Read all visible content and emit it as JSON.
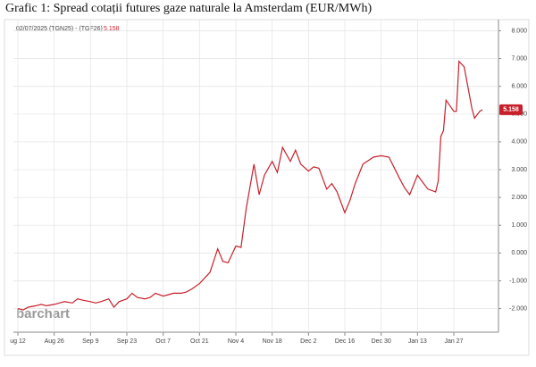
{
  "chart_data": {
    "type": "line",
    "title": "Grafic 1: Spread cotații futures gaze naturale la Amsterdam (EUR/MWh)",
    "header": "02/07/2025 (TGN25) - (TGF26)",
    "watermark": "barchart",
    "x": [
      "Aug 12",
      "Aug 14",
      "Aug 16",
      "Aug 19",
      "Aug 21",
      "Aug 23",
      "Aug 26",
      "Aug 28",
      "Aug 30",
      "Sep 2",
      "Sep 4",
      "Sep 6",
      "Sep 9",
      "Sep 11",
      "Sep 13",
      "Sep 16",
      "Sep 18",
      "Sep 20",
      "Sep 23",
      "Sep 25",
      "Sep 27",
      "Sep 30",
      "Oct 2",
      "Oct 4",
      "Oct 7",
      "Oct 9",
      "Oct 11",
      "Oct 14",
      "Oct 16",
      "Oct 18",
      "Oct 21",
      "Oct 23",
      "Oct 25",
      "Oct 28",
      "Oct 30",
      "Nov 1",
      "Nov 4",
      "Nov 6",
      "Nov 8",
      "Nov 11",
      "Nov 13",
      "Nov 15",
      "Nov 18",
      "Nov 20",
      "Nov 22",
      "Nov 25",
      "Nov 27",
      "Nov 29",
      "Dec 2",
      "Dec 4",
      "Dec 6",
      "Dec 9",
      "Dec 11",
      "Dec 13",
      "Dec 16",
      "Dec 18",
      "Dec 20",
      "Dec 23",
      "Dec 27",
      "Dec 30",
      "Jan 2",
      "Jan 6",
      "Jan 8",
      "Jan 10",
      "Jan 13",
      "Jan 15",
      "Jan 17",
      "Jan 20",
      "Jan 21",
      "Jan 22",
      "Jan 23",
      "Jan 24",
      "Jan 27",
      "Jan 28",
      "Jan 29",
      "Jan 31",
      "Feb 3",
      "Feb 4",
      "Feb 6",
      "Feb 7"
    ],
    "series": [
      {
        "color": "#c8202b",
        "values": [
          -2.0,
          -2.05,
          -1.95,
          -1.9,
          -1.85,
          -1.9,
          -1.85,
          -1.8,
          -1.75,
          -1.8,
          -1.65,
          -1.7,
          -1.75,
          -1.8,
          -1.75,
          -1.65,
          -1.95,
          -1.75,
          -1.65,
          -1.45,
          -1.6,
          -1.65,
          -1.6,
          -1.45,
          -1.55,
          -1.5,
          -1.45,
          -1.45,
          -1.4,
          -1.3,
          -1.1,
          -0.9,
          -0.7,
          0.15,
          -0.3,
          -0.35,
          0.25,
          0.2,
          1.6,
          3.2,
          2.1,
          2.8,
          3.3,
          2.9,
          3.8,
          3.3,
          3.7,
          3.2,
          2.95,
          3.1,
          3.05,
          2.3,
          2.5,
          2.2,
          1.45,
          1.9,
          2.5,
          3.2,
          3.45,
          3.5,
          3.45,
          2.7,
          2.35,
          2.1,
          2.8,
          2.55,
          2.3,
          2.2,
          2.6,
          4.2,
          4.4,
          5.5,
          5.1,
          5.1,
          6.9,
          6.7,
          5.2,
          4.85,
          5.1,
          5.158
        ]
      }
    ],
    "ylim": [
      -2.85,
      8.4
    ],
    "yticks": [
      {
        "value": 8,
        "label": "8.000"
      },
      {
        "value": 7,
        "label": "7.000"
      },
      {
        "value": 6,
        "label": "6.000"
      },
      {
        "value": 5,
        "label": "5.000"
      },
      {
        "value": 4,
        "label": "4.000"
      },
      {
        "value": 3,
        "label": "3.000"
      },
      {
        "value": 2,
        "label": "2.000"
      },
      {
        "value": 1,
        "label": "1.000"
      },
      {
        "value": 0,
        "label": "0.000"
      },
      {
        "value": -1,
        "label": "-1.000"
      },
      {
        "value": -2,
        "label": "-2.000"
      }
    ],
    "xticks": [
      {
        "value": "Aug 12",
        "label": "ug 12"
      },
      "Aug 26",
      "Sep 9",
      "Sep 23",
      "Oct 7",
      "Oct 21",
      "Nov 4",
      "Nov 18",
      "Dec 2",
      "Dec 16",
      "Dec 30",
      "Jan 13",
      "Jan 27"
    ],
    "grid": true
  }
}
